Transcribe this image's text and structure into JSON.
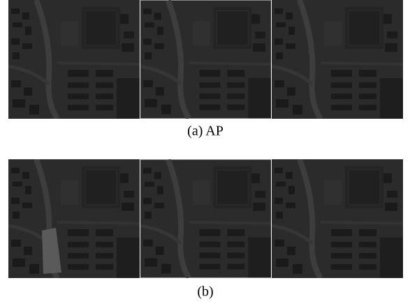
{
  "figure": {
    "panels": [
      {
        "caption": "(a) AP"
      },
      {
        "caption": "(b)"
      }
    ]
  }
}
